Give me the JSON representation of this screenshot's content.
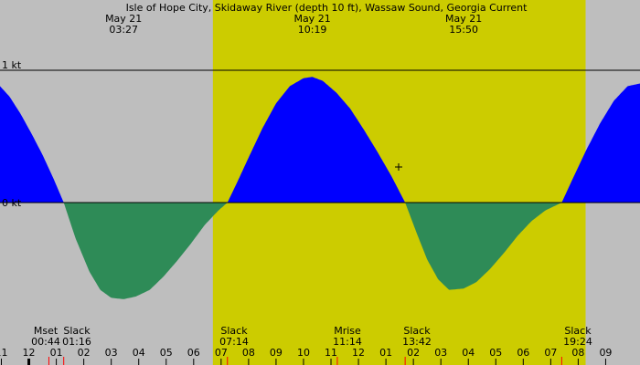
{
  "title": "Isle of Hope City, Skidaway River (depth 10 ft), Wassaw Sound, Georgia Current",
  "colors": {
    "background": "#bebebe",
    "daylight": "#cccc00",
    "flood": "#0000ff",
    "ebb": "#2e8b57",
    "line": "#000000",
    "tick_red": "#ff0000"
  },
  "chart_data": {
    "type": "area",
    "title": "Isle of Hope City, Skidaway River (depth 10 ft), Wassaw Sound, Georgia Current",
    "xlabel": "",
    "ylabel": "",
    "ylim": [
      -0.73,
      1.0
    ],
    "xlim": [
      22.95,
      46.25
    ],
    "y_tick_labels": [
      {
        "value": 1,
        "label": "1 kt"
      },
      {
        "value": 0,
        "label": "0 kt"
      }
    ],
    "x_tick_labels": [
      {
        "hour": 23,
        "label": "11"
      },
      {
        "hour": 24,
        "label": "12"
      },
      {
        "hour": 25,
        "label": "01"
      },
      {
        "hour": 26,
        "label": "02"
      },
      {
        "hour": 27,
        "label": "03"
      },
      {
        "hour": 28,
        "label": "04"
      },
      {
        "hour": 29,
        "label": "05"
      },
      {
        "hour": 30,
        "label": "06"
      },
      {
        "hour": 31,
        "label": "07"
      },
      {
        "hour": 32,
        "label": "08"
      },
      {
        "hour": 33,
        "label": "09"
      },
      {
        "hour": 34,
        "label": "10"
      },
      {
        "hour": 35,
        "label": "11"
      },
      {
        "hour": 36,
        "label": "12"
      },
      {
        "hour": 37,
        "label": "01"
      },
      {
        "hour": 38,
        "label": "02"
      },
      {
        "hour": 39,
        "label": "03"
      },
      {
        "hour": 40,
        "label": "04"
      },
      {
        "hour": 41,
        "label": "05"
      },
      {
        "hour": 42,
        "label": "06"
      },
      {
        "hour": 43,
        "label": "07"
      },
      {
        "hour": 44,
        "label": "08"
      },
      {
        "hour": 45,
        "label": "09"
      }
    ],
    "daylight": {
      "start_hour": 30.7,
      "end_hour": 44.27
    },
    "top_labels": [
      {
        "hour": 27.45,
        "date": "May 21",
        "time": "03:27"
      },
      {
        "hour": 34.32,
        "date": "May 21",
        "time": "10:19"
      },
      {
        "hour": 39.83,
        "date": "May 21",
        "time": "15:50"
      }
    ],
    "events": [
      {
        "hour": 24.73,
        "name": "Mset",
        "time": "00:44"
      },
      {
        "hour": 25.27,
        "name": "Slack",
        "time": "01:16"
      },
      {
        "hour": 31.23,
        "name": "Slack",
        "time": "07:14"
      },
      {
        "hour": 35.23,
        "name": "Mrise",
        "time": "11:14"
      },
      {
        "hour": 37.7,
        "name": "Slack",
        "time": "13:42"
      },
      {
        "hour": 43.4,
        "name": "Slack",
        "time": "19:24"
      }
    ],
    "series": [
      {
        "x": [
          22.95,
          23.3,
          23.7,
          24.1,
          24.5,
          24.9,
          25.27,
          25.7,
          26.2,
          26.6,
          27.0,
          27.45,
          27.9,
          28.4,
          28.9,
          29.4,
          29.9,
          30.4,
          30.9,
          31.23,
          31.6,
          32.0,
          32.5,
          33.0,
          33.5,
          34.0,
          34.32,
          34.7,
          35.2,
          35.7,
          36.2,
          36.7,
          37.2,
          37.7,
          38.1,
          38.5,
          38.9,
          39.3,
          39.83,
          40.3,
          40.8,
          41.3,
          41.8,
          42.3,
          42.8,
          43.4,
          43.8,
          44.3,
          44.8,
          45.3,
          45.8,
          46.25
        ],
        "y": [
          0.88,
          0.8,
          0.67,
          0.52,
          0.36,
          0.18,
          0.0,
          -0.27,
          -0.52,
          -0.66,
          -0.72,
          -0.73,
          -0.71,
          -0.66,
          -0.56,
          -0.44,
          -0.31,
          -0.17,
          -0.06,
          0.0,
          0.16,
          0.34,
          0.56,
          0.75,
          0.88,
          0.94,
          0.95,
          0.92,
          0.83,
          0.71,
          0.55,
          0.38,
          0.2,
          0.0,
          -0.22,
          -0.43,
          -0.58,
          -0.66,
          -0.65,
          -0.6,
          -0.5,
          -0.38,
          -0.25,
          -0.14,
          -0.06,
          0.0,
          0.18,
          0.4,
          0.6,
          0.77,
          0.88,
          0.9
        ]
      }
    ]
  }
}
